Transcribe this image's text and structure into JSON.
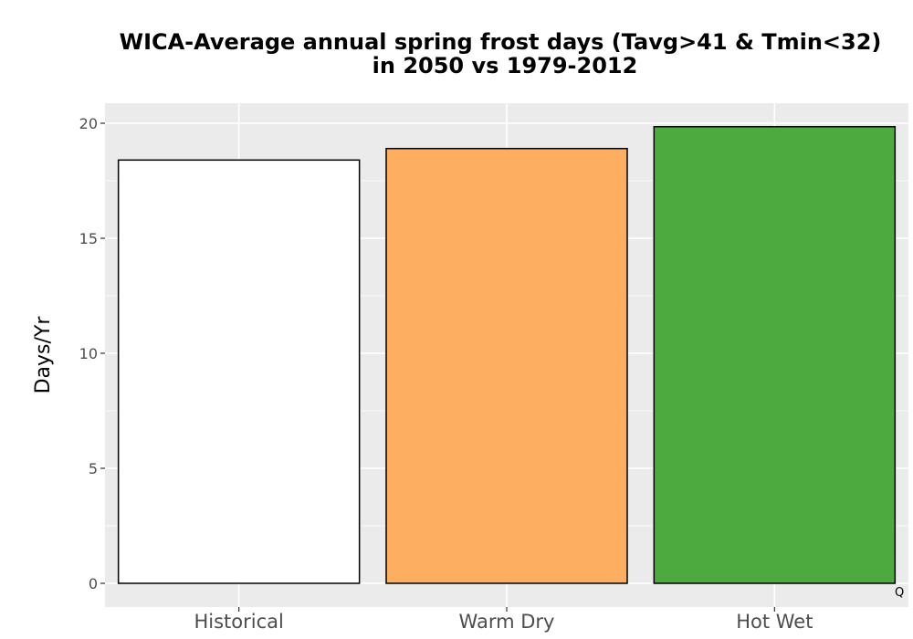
{
  "chart_data": {
    "type": "bar",
    "title": "WICA-Average annual spring frost days (Tavg>41 & Tmin<32)",
    "subtitle": "in 2050 vs 1979-2012",
    "xlabel": "",
    "ylabel": "Days/Yr",
    "categories": [
      "Historical",
      "Warm Dry",
      "Hot Wet"
    ],
    "values": [
      18.4,
      18.9,
      19.85
    ],
    "colors": [
      "#ffffff",
      "#fdae61",
      "#4daa3f"
    ],
    "bar_outline": "#000000",
    "panel_background": "#ebebeb",
    "grid": true,
    "grid_color": "#ffffff",
    "ylim": [
      0,
      20.8
    ],
    "yticks": [
      0,
      5,
      10,
      15,
      20
    ],
    "yticklabels": [
      "0",
      "5",
      "10",
      "15",
      "20"
    ],
    "legend": "none",
    "corner_label": "Q"
  }
}
